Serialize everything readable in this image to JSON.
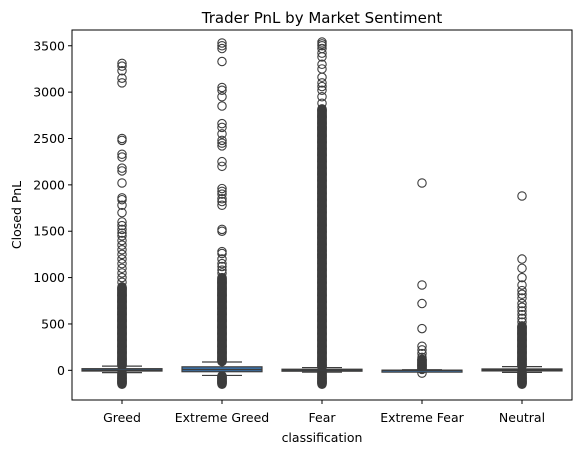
{
  "chart_data": {
    "type": "box",
    "title": "Trader PnL by Market Sentiment",
    "xlabel": "classification",
    "ylabel": "Closed PnL",
    "ylim": [
      -320,
      3670
    ],
    "yticks": [
      0,
      500,
      1000,
      1500,
      2000,
      2500,
      3000,
      3500
    ],
    "grid": false,
    "colors": {
      "box_fill": "#3b75af",
      "box_edge": "#3d3d3d",
      "outlier": "#3d3d3d"
    },
    "categories": [
      "Greed",
      "Extreme Greed",
      "Fear",
      "Extreme Fear",
      "Neutral"
    ],
    "boxes": [
      {
        "name": "Greed",
        "whisker_low": -25,
        "q1": -8,
        "median": 2,
        "q3": 18,
        "whisker_high": 45,
        "outliers_dense": [
          [
            -150,
            -30
          ],
          [
            50,
            900
          ]
        ],
        "outliers": [
          950,
          1000,
          1050,
          1100,
          1150,
          1200,
          1250,
          1300,
          1350,
          1400,
          1450,
          1480,
          1520,
          1560,
          1600,
          1700,
          1780,
          1840,
          1860,
          2020,
          2150,
          2180,
          2300,
          2330,
          2480,
          2500,
          3100,
          3150,
          3230,
          3280,
          3310
        ]
      },
      {
        "name": "Extreme Greed",
        "whisker_low": -55,
        "q1": -15,
        "median": 8,
        "q3": 38,
        "whisker_high": 90,
        "outliers_dense": [
          [
            -150,
            -60
          ],
          [
            95,
            1000
          ]
        ],
        "outliers": [
          1050,
          1080,
          1120,
          1150,
          1200,
          1260,
          1280,
          1500,
          1520,
          1780,
          1820,
          1850,
          1900,
          1930,
          1960,
          2200,
          2250,
          2420,
          2450,
          2480,
          2550,
          2620,
          2660,
          2850,
          2950,
          3020,
          3050,
          3330,
          3470,
          3500,
          3530
        ]
      },
      {
        "name": "Fear",
        "whisker_low": -20,
        "q1": -5,
        "median": 2,
        "q3": 12,
        "whisker_high": 30,
        "outliers_dense": [
          [
            -150,
            -25
          ],
          [
            35,
            2820
          ]
        ],
        "outliers": [
          2880,
          2950,
          3020,
          3060,
          3100,
          3160,
          3250,
          3300,
          3380,
          3420,
          3470,
          3500,
          3520,
          3540
        ]
      },
      {
        "name": "Extreme Fear",
        "whisker_low": -10,
        "q1": -4,
        "median": 0,
        "q3": 2,
        "whisker_high": 6,
        "outliers_dense": [
          [
            10,
            120
          ]
        ],
        "outliers": [
          -30,
          140,
          180,
          220,
          260,
          450,
          720,
          920,
          2020
        ]
      },
      {
        "name": "Neutral",
        "whisker_low": -22,
        "q1": -6,
        "median": 3,
        "q3": 15,
        "whisker_high": 40,
        "outliers_dense": [
          [
            -150,
            -25
          ],
          [
            45,
            480
          ]
        ],
        "outliers": [
          520,
          560,
          600,
          640,
          680,
          720,
          780,
          820,
          860,
          920,
          1000,
          1100,
          1200,
          1880
        ]
      }
    ]
  }
}
